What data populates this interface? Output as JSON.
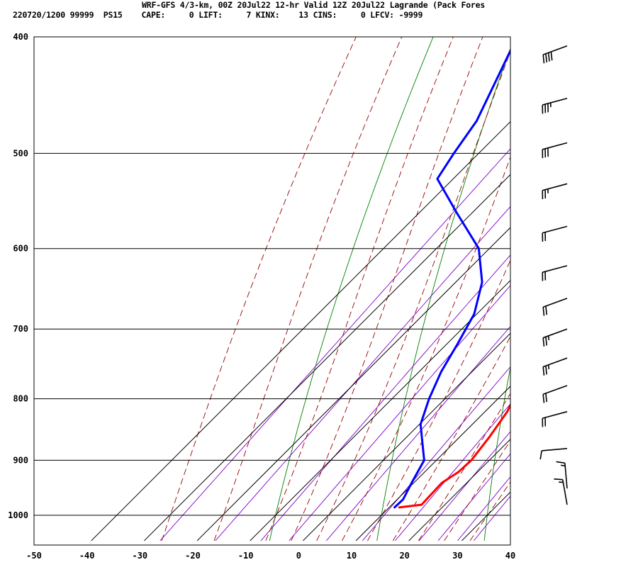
{
  "header": {
    "line1": "WRF-GFS 4/3-km, 00Z 20Jul22 12-hr Valid 12Z 20Jul22 Lagrande (Pack Fores",
    "line2": "220720/1200 99999  PS15    CAPE:     0 LIFT:     7 KINX:    13 CINS:     0 LFCV: -9999"
  },
  "colors": {
    "temperature": "#ff0000",
    "dewpoint": "#0000ff",
    "isobar_isotherm": "#000000",
    "dry_adiabat": "#008000",
    "moist_adiabat": "#990000",
    "mixing_ratio": "#8000cc"
  },
  "chart_data": {
    "type": "line",
    "title": "",
    "xlabel": "",
    "ylabel": "",
    "x_ticks": [
      "-50",
      "-40",
      "-30",
      "-20",
      "-10",
      "0",
      "10",
      "20",
      "30",
      "40"
    ],
    "y_ticks": [
      "400",
      "500",
      "600",
      "700",
      "800",
      "900",
      "1000"
    ],
    "xlim": [
      -50,
      40
    ],
    "ylim_pressure": [
      1050,
      400
    ],
    "y_scale": "log pressure",
    "isotherm_skew": "45 degrees",
    "series": [
      {
        "key": "temperature",
        "points": [
          {
            "p": 985,
            "t": 11.9
          },
          {
            "p": 980,
            "t": 15.6
          },
          {
            "p": 940,
            "t": 15.3
          },
          {
            "p": 920,
            "t": 16.4
          },
          {
            "p": 900,
            "t": 16.6
          },
          {
            "p": 860,
            "t": 15.6
          },
          {
            "p": 820,
            "t": 14.2
          },
          {
            "p": 780,
            "t": 11.7
          },
          {
            "p": 740,
            "t": 8.5
          },
          {
            "p": 700,
            "t": 5.0
          },
          {
            "p": 650,
            "t": 1.4
          },
          {
            "p": 600,
            "t": -2.3
          },
          {
            "p": 550,
            "t": -6.8
          },
          {
            "p": 520,
            "t": -10.2
          },
          {
            "p": 490,
            "t": -14.8
          },
          {
            "p": 450,
            "t": -20.5
          },
          {
            "p": 410,
            "t": -26.8
          }
        ]
      },
      {
        "key": "dewpoint",
        "points": [
          {
            "p": 985,
            "t": 11.0
          },
          {
            "p": 970,
            "t": 11.1
          },
          {
            "p": 940,
            "t": 9.6
          },
          {
            "p": 900,
            "t": 7.7
          },
          {
            "p": 870,
            "t": 4.0
          },
          {
            "p": 840,
            "t": 0.2
          },
          {
            "p": 800,
            "t": -3.0
          },
          {
            "p": 760,
            "t": -5.8
          },
          {
            "p": 720,
            "t": -8.0
          },
          {
            "p": 680,
            "t": -10.5
          },
          {
            "p": 640,
            "t": -15.0
          },
          {
            "p": 600,
            "t": -22.0
          },
          {
            "p": 560,
            "t": -33.0
          },
          {
            "p": 525,
            "t": -43.0
          },
          {
            "p": 500,
            "t": -44.7
          },
          {
            "p": 470,
            "t": -46.5
          },
          {
            "p": 410,
            "t": -53.5
          }
        ]
      }
    ],
    "isobars": [
      400,
      500,
      600,
      700,
      800,
      900,
      1000
    ],
    "isotherms": [
      -40,
      -30,
      -20,
      -10,
      0,
      10,
      20,
      30
    ],
    "dry_adiabats_theta_c": [
      -10,
      10,
      30,
      50,
      70,
      90,
      110
    ],
    "moist_adiabats_ref_t_c": [
      -30,
      -20,
      -10,
      -5,
      0,
      5,
      10,
      15,
      20,
      25,
      30
    ],
    "mixing_ratios_gkg": [
      0.4,
      1,
      2,
      3,
      5,
      8,
      12,
      16,
      20,
      25,
      30
    ],
    "wind_barbs": [
      {
        "p": 407,
        "spd_kt": 40,
        "dir_deg": 250
      },
      {
        "p": 450,
        "spd_kt": 35,
        "dir_deg": 255
      },
      {
        "p": 490,
        "spd_kt": 30,
        "dir_deg": 255
      },
      {
        "p": 530,
        "spd_kt": 25,
        "dir_deg": 255
      },
      {
        "p": 575,
        "spd_kt": 20,
        "dir_deg": 255
      },
      {
        "p": 620,
        "spd_kt": 20,
        "dir_deg": 255
      },
      {
        "p": 660,
        "spd_kt": 20,
        "dir_deg": 250
      },
      {
        "p": 700,
        "spd_kt": 25,
        "dir_deg": 250
      },
      {
        "p": 740,
        "spd_kt": 25,
        "dir_deg": 250
      },
      {
        "p": 780,
        "spd_kt": 20,
        "dir_deg": 250
      },
      {
        "p": 820,
        "spd_kt": 20,
        "dir_deg": 255
      },
      {
        "p": 880,
        "spd_kt": 10,
        "dir_deg": 265
      },
      {
        "p": 950,
        "spd_kt": 15,
        "dir_deg": 355
      },
      {
        "p": 980,
        "spd_kt": 15,
        "dir_deg": 350
      }
    ]
  }
}
